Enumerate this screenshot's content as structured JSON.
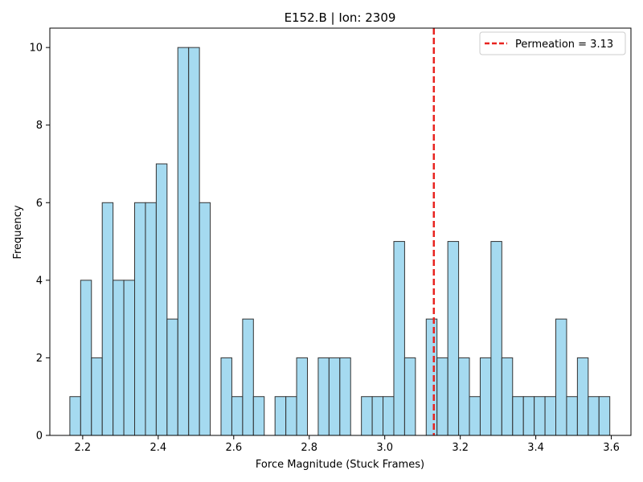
{
  "chart_data": {
    "type": "bar",
    "title": "E152.B | Ion: 2309",
    "xlabel": "Force Magnitude (Stuck Frames)",
    "ylabel": "Frequency",
    "xlim": [
      2.113,
      3.652
    ],
    "ylim": [
      0,
      10.5
    ],
    "xticks": [
      "2.2",
      "2.4",
      "2.6",
      "2.8",
      "3.0",
      "3.2",
      "3.4",
      "3.6"
    ],
    "yticks": [
      "0",
      "2",
      "4",
      "6",
      "8",
      "10"
    ],
    "bin_start": 2.166,
    "bin_width": 0.0286,
    "counts": [
      1,
      4,
      2,
      6,
      4,
      4,
      6,
      6,
      7,
      3,
      10,
      10,
      6,
      0,
      2,
      1,
      3,
      1,
      0,
      1,
      1,
      2,
      0,
      2,
      2,
      2,
      0,
      1,
      1,
      1,
      5,
      2,
      0,
      3,
      2,
      5,
      2,
      1,
      2,
      5,
      2,
      1,
      1,
      1,
      1,
      3,
      1,
      2,
      1,
      1
    ],
    "bar_color": "#87CEEB",
    "bar_edge_color": "#333333",
    "permeation_value": 3.13,
    "permeation_color": "#e8231f",
    "legend": {
      "placement": "top-right",
      "entries": [
        "Permeation = 3.13"
      ]
    },
    "grid": false
  }
}
